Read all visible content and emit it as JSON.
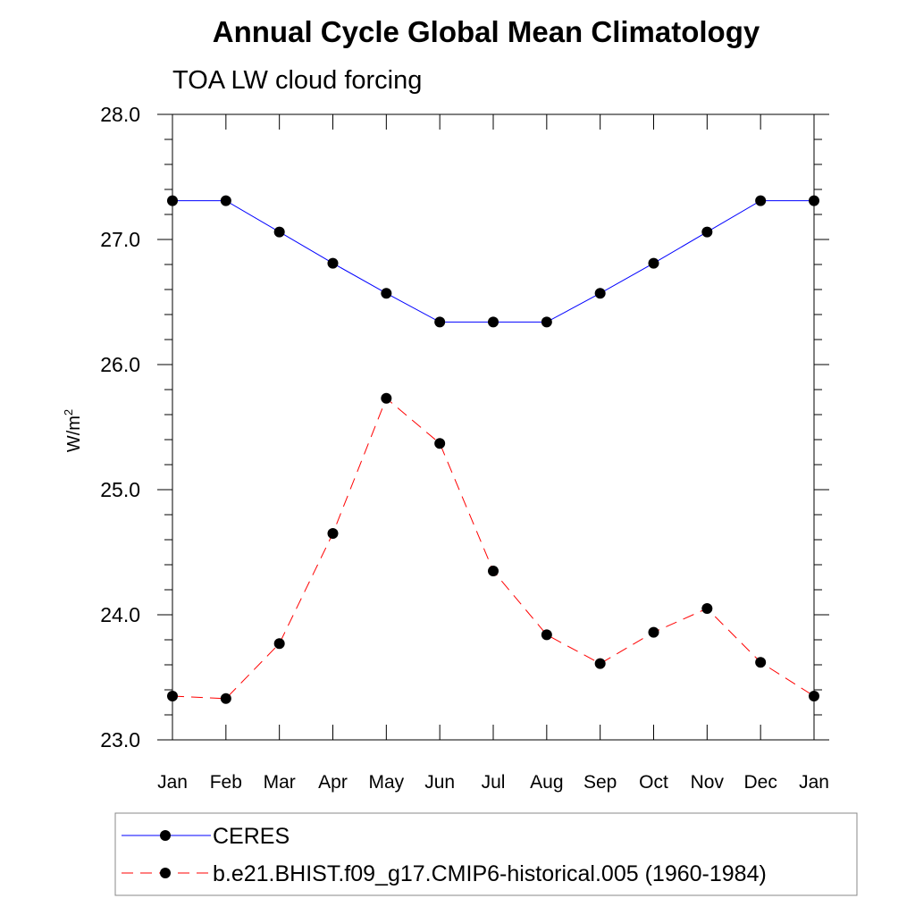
{
  "chart_data": {
    "type": "line",
    "title": "Annual Cycle Global Mean Climatology",
    "subtitle": "TOA LW cloud forcing",
    "ylabel": "W/m",
    "ylabel_sup": "2",
    "ylim": [
      23.0,
      28.0
    ],
    "yticks": [
      "23.0",
      "24.0",
      "25.0",
      "26.0",
      "27.0",
      "28.0"
    ],
    "categories": [
      "Jan",
      "Feb",
      "Mar",
      "Apr",
      "May",
      "Jun",
      "Jul",
      "Aug",
      "Sep",
      "Oct",
      "Nov",
      "Dec",
      "Jan"
    ],
    "series": [
      {
        "name": "CERES",
        "color": "#0000ff",
        "dash": "solid",
        "values": [
          27.31,
          27.31,
          27.06,
          26.81,
          26.57,
          26.34,
          26.34,
          26.34,
          26.57,
          26.81,
          27.06,
          27.31,
          27.31
        ]
      },
      {
        "name": "b.e21.BHIST.f09_g17.CMIP6-historical.005 (1960-1984)",
        "color": "#ff0000",
        "dash": "dashed",
        "values": [
          23.35,
          23.33,
          23.77,
          24.65,
          25.73,
          25.37,
          24.35,
          23.84,
          23.61,
          23.86,
          24.05,
          23.62,
          23.35
        ]
      }
    ],
    "legend_position": "bottom"
  }
}
